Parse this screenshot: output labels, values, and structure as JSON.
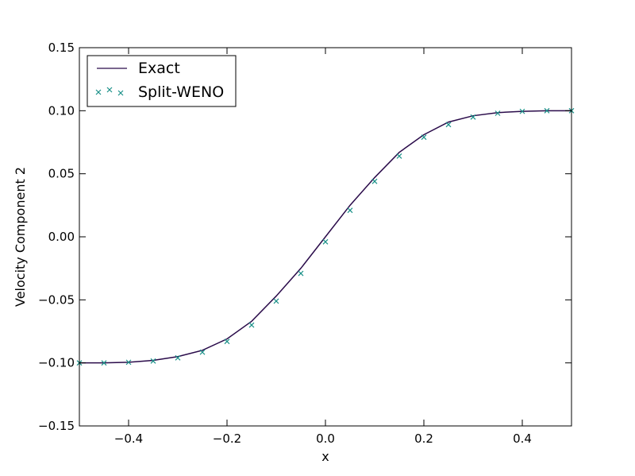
{
  "chart_data": {
    "type": "line",
    "title": "",
    "xlabel": "x",
    "ylabel": "Velocity Component 2",
    "xlim": [
      -0.5,
      0.5
    ],
    "ylim": [
      -0.15,
      0.15
    ],
    "x_ticks": [
      -0.4,
      -0.2,
      0.0,
      0.2,
      0.4
    ],
    "x_tick_labels": [
      "−0.4",
      "−0.2",
      "0.0",
      "0.2",
      "0.4"
    ],
    "y_ticks": [
      -0.15,
      -0.1,
      -0.05,
      0.0,
      0.05,
      0.1,
      0.15
    ],
    "y_tick_labels": [
      "−0.15",
      "−0.10",
      "−0.05",
      "0.00",
      "0.05",
      "0.10",
      "0.15"
    ],
    "grid": false,
    "legend_position": "top-left",
    "series": [
      {
        "name": "Exact",
        "style": "line",
        "color": "#2a0b4a",
        "x": [
          -0.5,
          -0.45,
          -0.4,
          -0.35,
          -0.3,
          -0.25,
          -0.2,
          -0.15,
          -0.1,
          -0.05,
          0.0,
          0.05,
          0.1,
          0.15,
          0.2,
          0.25,
          0.3,
          0.35,
          0.4,
          0.45,
          0.5
        ],
        "y": [
          -0.1,
          -0.1,
          -0.0995,
          -0.098,
          -0.095,
          -0.09,
          -0.081,
          -0.067,
          -0.047,
          -0.025,
          0.0,
          0.025,
          0.047,
          0.067,
          0.081,
          0.091,
          0.096,
          0.0985,
          0.0995,
          0.1,
          0.1
        ]
      },
      {
        "name": "Split-WENO",
        "style": "marker-x",
        "color": "#1a9088",
        "x": [
          -0.5,
          -0.45,
          -0.4,
          -0.35,
          -0.3,
          -0.25,
          -0.2,
          -0.15,
          -0.1,
          -0.05,
          0.0,
          0.05,
          0.1,
          0.15,
          0.2,
          0.25,
          0.3,
          0.35,
          0.4,
          0.45,
          0.5
        ],
        "y": [
          -0.1,
          -0.1,
          -0.0995,
          -0.0985,
          -0.096,
          -0.0915,
          -0.083,
          -0.07,
          -0.051,
          -0.029,
          -0.004,
          0.021,
          0.044,
          0.064,
          0.079,
          0.089,
          0.095,
          0.098,
          0.0995,
          0.1,
          0.1
        ]
      }
    ]
  }
}
